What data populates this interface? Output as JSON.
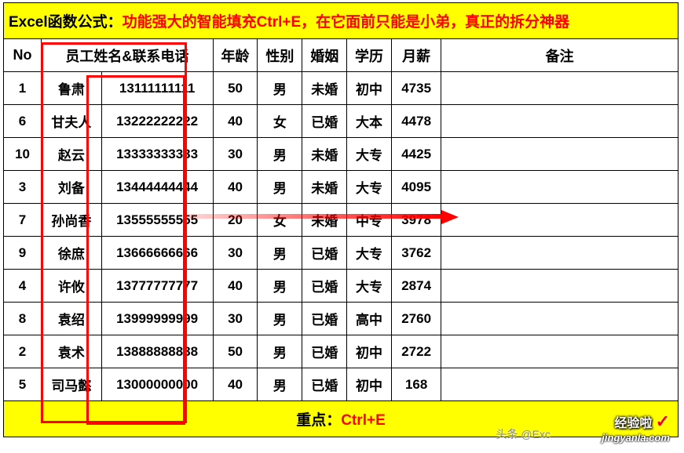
{
  "title": {
    "prefix": "Excel函数公式：",
    "main": "功能强大的智能填充Ctrl+E，在它面前只能是小弟，真正的拆分神器"
  },
  "headers": {
    "no": "No",
    "name_phone": "员工姓名&联系电话",
    "age": "年龄",
    "gender": "性别",
    "marriage": "婚姻",
    "edu": "学历",
    "salary": "月薪",
    "remark": "备注"
  },
  "rows": [
    {
      "no": "1",
      "name": "鲁肃",
      "phone": "13111111111",
      "age": "50",
      "gender": "男",
      "marriage": "未婚",
      "edu": "初中",
      "salary": "4735",
      "remark": ""
    },
    {
      "no": "6",
      "name": "甘夫人",
      "phone": "13222222222",
      "age": "40",
      "gender": "女",
      "marriage": "已婚",
      "edu": "大本",
      "salary": "4478",
      "remark": ""
    },
    {
      "no": "10",
      "name": "赵云",
      "phone": "13333333333",
      "age": "30",
      "gender": "男",
      "marriage": "未婚",
      "edu": "大专",
      "salary": "4425",
      "remark": ""
    },
    {
      "no": "3",
      "name": "刘备",
      "phone": "13444444444",
      "age": "40",
      "gender": "男",
      "marriage": "未婚",
      "edu": "大专",
      "salary": "4095",
      "remark": ""
    },
    {
      "no": "7",
      "name": "孙尚香",
      "phone": "13555555555",
      "age": "20",
      "gender": "女",
      "marriage": "未婚",
      "edu": "中专",
      "salary": "3978",
      "remark": ""
    },
    {
      "no": "9",
      "name": "徐庶",
      "phone": "13666666666",
      "age": "30",
      "gender": "男",
      "marriage": "已婚",
      "edu": "大专",
      "salary": "3762",
      "remark": ""
    },
    {
      "no": "4",
      "name": "许攸",
      "phone": "13777777777",
      "age": "40",
      "gender": "男",
      "marriage": "已婚",
      "edu": "大专",
      "salary": "2874",
      "remark": ""
    },
    {
      "no": "8",
      "name": "袁绍",
      "phone": "13999999999",
      "age": "30",
      "gender": "男",
      "marriage": "已婚",
      "edu": "高中",
      "salary": "2760",
      "remark": ""
    },
    {
      "no": "2",
      "name": "袁术",
      "phone": "13888888888",
      "age": "50",
      "gender": "男",
      "marriage": "已婚",
      "edu": "初中",
      "salary": "2722",
      "remark": ""
    },
    {
      "no": "5",
      "name": "司马懿",
      "phone": "13000000000",
      "age": "40",
      "gender": "男",
      "marriage": "已婚",
      "edu": "初中",
      "salary": "168",
      "remark": ""
    }
  ],
  "footer": {
    "label": "重点：",
    "value": "Ctrl+E"
  },
  "credits": {
    "toutiao": "头条 @Exc",
    "brand1": "经验啦",
    "brand2": "jingyanla.com",
    "check": "✓"
  },
  "style": {
    "highlight_bg": "#ffff00",
    "red": "#ff0000",
    "border": "#000000"
  }
}
